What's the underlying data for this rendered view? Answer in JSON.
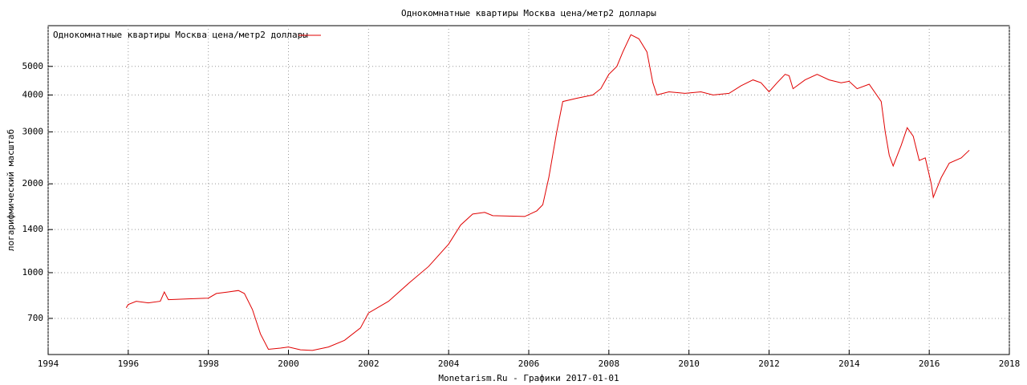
{
  "chart_data": {
    "type": "line",
    "title": "Однокомнатные квартиры Москва цена/метр2 доллары",
    "xlabel": "Monetarism.Ru - Графики  2017-01-01",
    "ylabel": "логарифмический масштаб",
    "log_y": true,
    "grid": true,
    "legend": "top-left",
    "xlim": [
      1994,
      2018
    ],
    "xticks": [
      1994,
      1996,
      1998,
      2000,
      2002,
      2004,
      2006,
      2008,
      2010,
      2012,
      2014,
      2016,
      2018
    ],
    "ylim": [
      528,
      6870
    ],
    "yticks": [
      700,
      1000,
      1400,
      2000,
      3000,
      4000,
      5000
    ],
    "x": [
      1995.95,
      1996.0,
      1996.2,
      1996.5,
      1996.8,
      1996.9,
      1997.0,
      1997.5,
      1998.0,
      1998.2,
      1998.5,
      1998.75,
      1998.9,
      1999.1,
      1999.3,
      1999.5,
      1999.8,
      2000.0,
      2000.3,
      2000.6,
      2001.0,
      2001.4,
      2001.8,
      2002.0,
      2002.5,
      2003.0,
      2003.5,
      2004.0,
      2004.3,
      2004.6,
      2004.9,
      2005.1,
      2005.5,
      2005.9,
      2006.2,
      2006.35,
      2006.5,
      2006.7,
      2006.85,
      2007.2,
      2007.6,
      2007.8,
      2008.0,
      2008.2,
      2008.35,
      2008.55,
      2008.75,
      2008.95,
      2009.1,
      2009.2,
      2009.5,
      2009.9,
      2010.3,
      2010.6,
      2011.0,
      2011.3,
      2011.6,
      2011.8,
      2012.0,
      2012.2,
      2012.4,
      2012.5,
      2012.6,
      2012.9,
      2013.2,
      2013.5,
      2013.8,
      2014.0,
      2014.2,
      2014.5,
      2014.8,
      2014.9,
      2015.0,
      2015.1,
      2015.3,
      2015.45,
      2015.6,
      2015.75,
      2015.9,
      2016.05,
      2016.1,
      2016.3,
      2016.5,
      2016.8,
      2017.0
    ],
    "series": [
      {
        "name": "Однокомнатные квартиры Москва цена/метр2 доллары",
        "color": "#e00000",
        "values": [
          760,
          780,
          800,
          790,
          800,
          860,
          810,
          815,
          820,
          850,
          860,
          870,
          850,
          750,
          620,
          550,
          555,
          560,
          548,
          545,
          560,
          590,
          650,
          730,
          800,
          920,
          1050,
          1250,
          1450,
          1580,
          1600,
          1560,
          1555,
          1550,
          1620,
          1700,
          2100,
          3000,
          3800,
          3900,
          4000,
          4200,
          4700,
          5000,
          5600,
          6400,
          6200,
          5600,
          4400,
          4000,
          4100,
          4050,
          4100,
          4000,
          4050,
          4300,
          4500,
          4400,
          4100,
          4400,
          4700,
          4650,
          4200,
          4500,
          4700,
          4500,
          4400,
          4450,
          4200,
          4350,
          3800,
          3000,
          2500,
          2300,
          2700,
          3100,
          2900,
          2400,
          2450,
          2000,
          1800,
          2100,
          2350,
          2450,
          2600
        ]
      }
    ]
  }
}
